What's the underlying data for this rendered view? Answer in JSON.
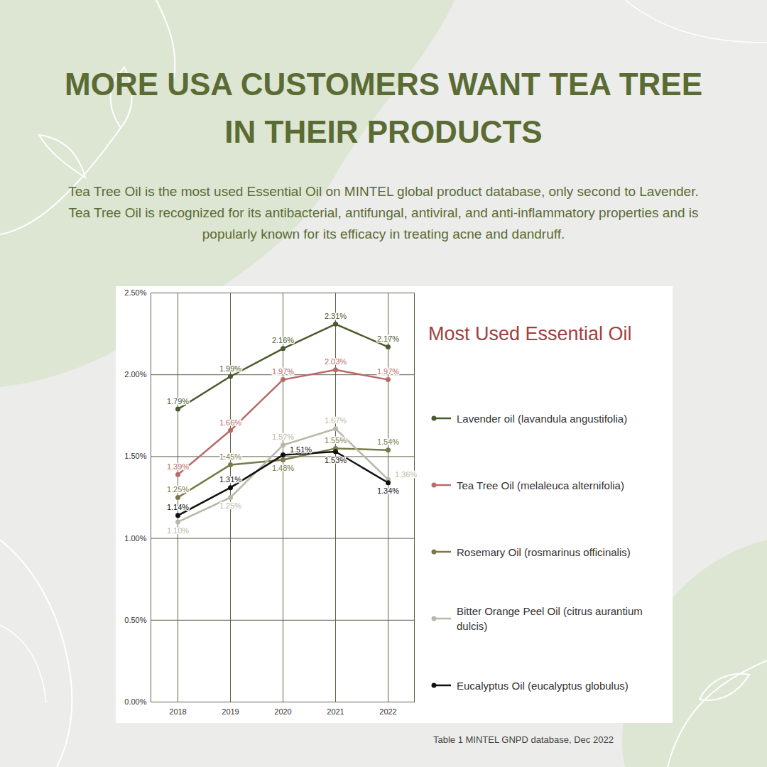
{
  "header": {
    "title": "MORE USA CUSTOMERS WANT TEA TREE IN THEIR PRODUCTS",
    "text": "Tea Tree Oil is the most used Essential Oil on MINTEL global product database, only second to Lavender. Tea Tree Oil is recognized for its antibacterial, antifungal, antiviral, and anti-inflammatory properties and is popularly known for its efficacy in treating acne and dandruff."
  },
  "chart_data": {
    "type": "line",
    "title": "Most Used Essential Oil",
    "categories": [
      "2018",
      "2019",
      "2020",
      "2021",
      "2022"
    ],
    "series": [
      {
        "name": "Lavender oil (lavandula angustifolia)",
        "color": "#4b5a2c",
        "values": [
          1.79,
          1.99,
          2.16,
          2.31,
          2.17
        ],
        "value_labels": [
          "1.79%",
          "1.99%",
          "2.16%",
          "2.31%",
          "2.17%"
        ]
      },
      {
        "name": "Tea Tree Oil (melaleuca alternifolia)",
        "color": "#b86a68",
        "values": [
          1.39,
          1.66,
          1.97,
          2.03,
          1.97
        ],
        "value_labels": [
          "1.39%",
          "1.66%",
          "1.97%",
          "2.03%",
          "1.97%"
        ]
      },
      {
        "name": "Rosemary Oil (rosmarinus officinalis)",
        "color": "#7a7a48",
        "values": [
          1.25,
          1.45,
          1.48,
          1.55,
          1.54
        ],
        "value_labels": [
          "1.25%",
          "1.45%",
          "1.48%",
          "1.55%",
          "1.54%"
        ]
      },
      {
        "name": "Bitter Orange Peel Oil (citrus aurantium dulcis)",
        "color": "#b9b8a8",
        "values": [
          1.1,
          1.25,
          1.57,
          1.67,
          1.36
        ],
        "value_labels": [
          "1.10%",
          "1.25%",
          "1.57%",
          "1.67%",
          "1.36%"
        ]
      },
      {
        "name": "Eucalyptus Oil (eucalyptus globulus)",
        "color": "#111111",
        "values": [
          1.14,
          1.31,
          1.51,
          1.53,
          1.34
        ],
        "value_labels": [
          "1.14%",
          "1.31%",
          "1.51%",
          "1.53%",
          "1.34%"
        ]
      }
    ],
    "ylim": [
      0,
      2.5
    ],
    "yticks": [
      {
        "value": 0,
        "label": "0.00%"
      },
      {
        "value": 0.5,
        "label": "0.50%"
      },
      {
        "value": 1,
        "label": "1.00%"
      },
      {
        "value": 1.5,
        "label": "1.50%"
      },
      {
        "value": 2,
        "label": "2.00%"
      },
      {
        "value": 2.5,
        "label": "2.50%"
      }
    ],
    "grid": true,
    "legend": "right",
    "data_labels": true,
    "marker": "circle",
    "line_style": "solid"
  },
  "caption": "Table 1 MINTEL GNPD database, Dec 2022"
}
